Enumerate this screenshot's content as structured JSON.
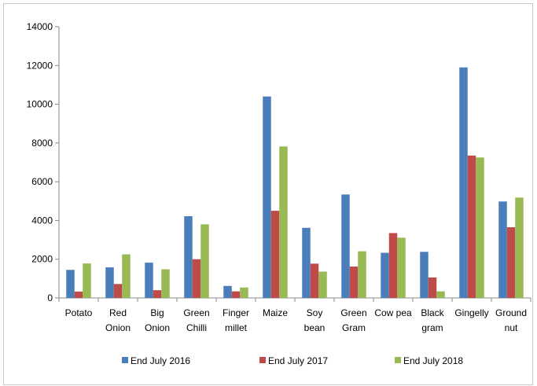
{
  "chart_data": {
    "type": "bar",
    "categories": [
      [
        "Potato"
      ],
      [
        "Red",
        "Onion"
      ],
      [
        "Big",
        "Onion"
      ],
      [
        "Green",
        "Chilli"
      ],
      [
        "Finger",
        "millet"
      ],
      [
        "Maize"
      ],
      [
        "Soy",
        "bean"
      ],
      [
        "Green",
        "Gram"
      ],
      [
        "Cow pea"
      ],
      [
        "Black",
        "gram"
      ],
      [
        "Gingelly"
      ],
      [
        "Ground",
        "nut"
      ]
    ],
    "series": [
      {
        "name": "End July 2016",
        "color": "#4a7ebb",
        "values": [
          1450,
          1580,
          1820,
          4220,
          620,
          10400,
          3620,
          5340,
          2330,
          2380,
          11900,
          4980
        ]
      },
      {
        "name": "End July 2017",
        "color": "#be4b48",
        "values": [
          330,
          720,
          400,
          2000,
          340,
          4500,
          1770,
          1620,
          3350,
          1060,
          7350,
          3650
        ]
      },
      {
        "name": "End July 2018",
        "color": "#98b954",
        "values": [
          1780,
          2250,
          1480,
          3800,
          540,
          7820,
          1360,
          2410,
          3110,
          340,
          7250,
          5180
        ]
      }
    ],
    "ylim": [
      0,
      14000
    ],
    "yticks": [
      "0",
      "2000",
      "4000",
      "6000",
      "8000",
      "10000",
      "12000",
      "14000"
    ],
    "ytick_values": [
      0,
      2000,
      4000,
      6000,
      8000,
      10000,
      12000,
      14000
    ],
    "grid": false,
    "legend_position": "bottom"
  }
}
